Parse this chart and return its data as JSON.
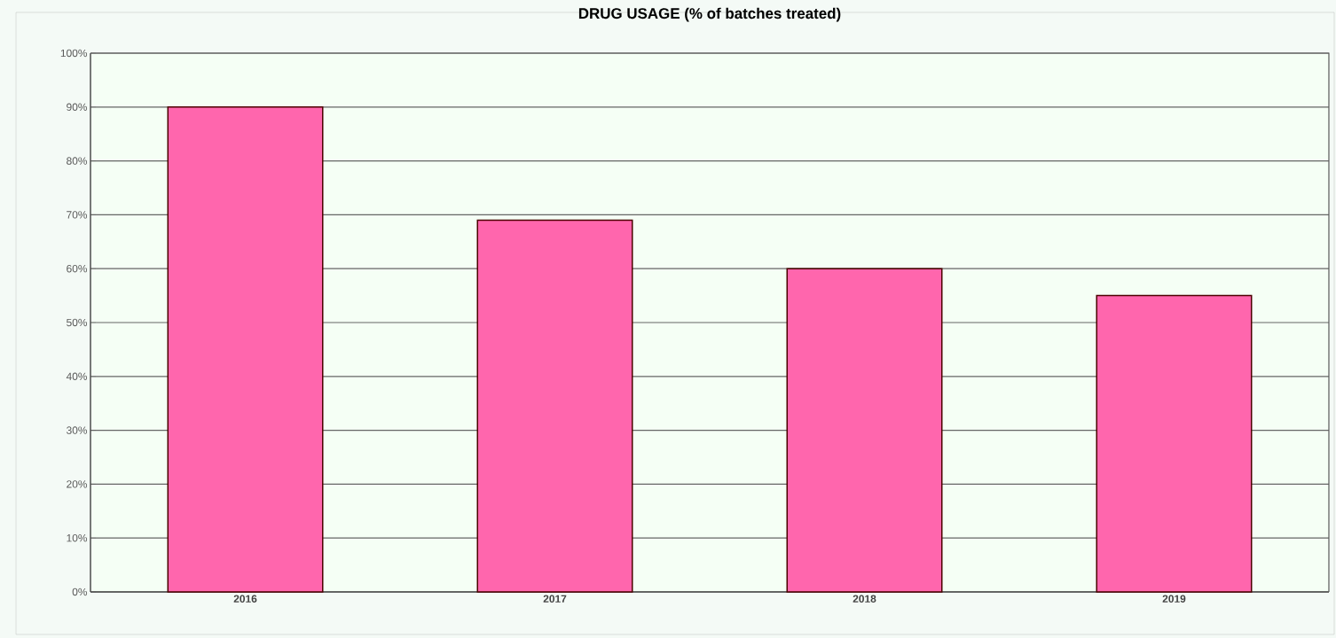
{
  "chart_data": {
    "type": "bar",
    "title": "DRUG USAGE (% of batches treated)",
    "categories": [
      "2016",
      "2017",
      "2018",
      "2019"
    ],
    "values": [
      90,
      69,
      60,
      55
    ],
    "color": "#ff66ad",
    "ylim": [
      0,
      100
    ],
    "yticks": [
      {
        "value": 0,
        "label": "0%"
      },
      {
        "value": 10,
        "label": "10%"
      },
      {
        "value": 20,
        "label": "20%"
      },
      {
        "value": 30,
        "label": "30%"
      },
      {
        "value": 40,
        "label": "40%"
      },
      {
        "value": 50,
        "label": "50%"
      },
      {
        "value": 60,
        "label": "60%"
      },
      {
        "value": 70,
        "label": "70%"
      },
      {
        "value": 80,
        "label": "80%"
      },
      {
        "value": 90,
        "label": "90%"
      },
      {
        "value": 100,
        "label": "100%"
      }
    ],
    "grid": "y"
  }
}
